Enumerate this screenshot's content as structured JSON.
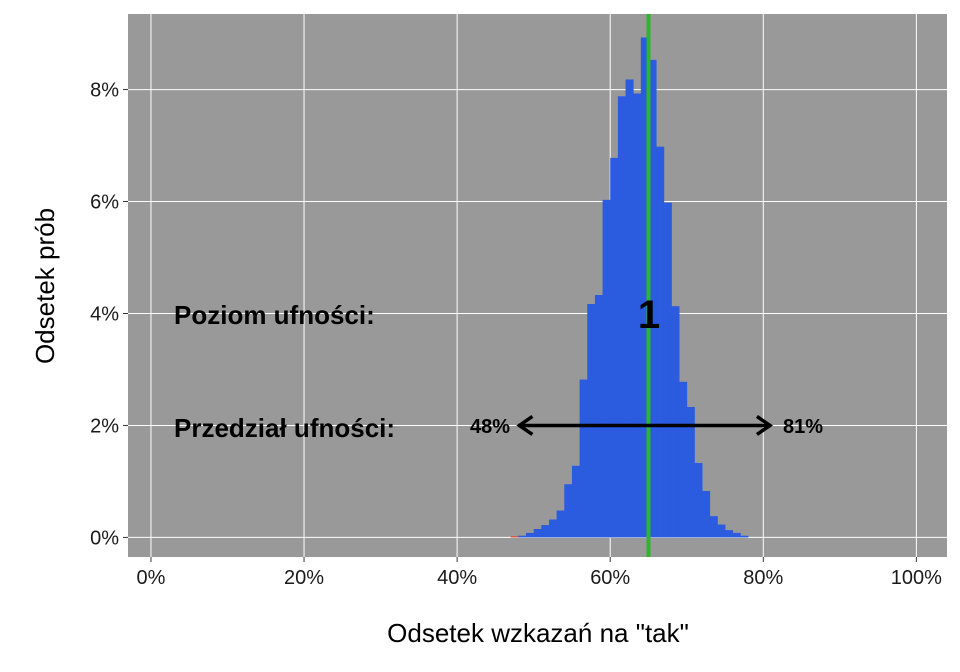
{
  "chart_data": {
    "type": "bar",
    "xlabel": "Odsetek wzkazań na \"tak\"",
    "ylabel": "Odsetek prób",
    "x_ticks": [
      "0%",
      "20%",
      "40%",
      "60%",
      "80%",
      "100%"
    ],
    "y_ticks": [
      "0%",
      "2%",
      "4%",
      "6%",
      "8%"
    ],
    "xlim": [
      -0.03,
      1.04
    ],
    "ylim": [
      -0.0035,
      0.0935
    ],
    "grid": true,
    "bin_width": 0.01,
    "bins": [
      {
        "x": 0.47,
        "y": 0.0002,
        "color": "#e0442f"
      },
      {
        "x": 0.48,
        "y": 0.0003,
        "color": "#2b5bde"
      },
      {
        "x": 0.49,
        "y": 0.0008
      },
      {
        "x": 0.5,
        "y": 0.0015
      },
      {
        "x": 0.51,
        "y": 0.0022
      },
      {
        "x": 0.52,
        "y": 0.0032
      },
      {
        "x": 0.53,
        "y": 0.0048
      },
      {
        "x": 0.54,
        "y": 0.0095
      },
      {
        "x": 0.55,
        "y": 0.0128
      },
      {
        "x": 0.56,
        "y": 0.0282
      },
      {
        "x": 0.57,
        "y": 0.0417
      },
      {
        "x": 0.58,
        "y": 0.0433
      },
      {
        "x": 0.59,
        "y": 0.0603
      },
      {
        "x": 0.6,
        "y": 0.0678
      },
      {
        "x": 0.61,
        "y": 0.0788
      },
      {
        "x": 0.62,
        "y": 0.0818
      },
      {
        "x": 0.63,
        "y": 0.0793
      },
      {
        "x": 0.64,
        "y": 0.0893
      },
      {
        "x": 0.65,
        "y": 0.0853
      },
      {
        "x": 0.66,
        "y": 0.0698
      },
      {
        "x": 0.67,
        "y": 0.0598
      },
      {
        "x": 0.68,
        "y": 0.0413
      },
      {
        "x": 0.69,
        "y": 0.0278
      },
      {
        "x": 0.7,
        "y": 0.0233
      },
      {
        "x": 0.71,
        "y": 0.0133
      },
      {
        "x": 0.72,
        "y": 0.0083
      },
      {
        "x": 0.73,
        "y": 0.0038
      },
      {
        "x": 0.74,
        "y": 0.0023
      },
      {
        "x": 0.75,
        "y": 0.0013
      },
      {
        "x": 0.76,
        "y": 0.0008
      },
      {
        "x": 0.77,
        "y": 0.0003
      }
    ],
    "bar_color": "#2b5bde",
    "panel_background": "#999999",
    "grid_color": "#ffffff",
    "reference_line": {
      "x": 0.65,
      "color": "#2db52d"
    },
    "annotations": {
      "confidence_level_label": "Poziom ufności:",
      "confidence_level_value": "1",
      "confidence_interval_label": "Przedział ufności:",
      "interval_low": 0.48,
      "interval_high": 0.81,
      "interval_low_label": "48%",
      "interval_high_label": "81%",
      "interval_y": 0.02
    }
  }
}
